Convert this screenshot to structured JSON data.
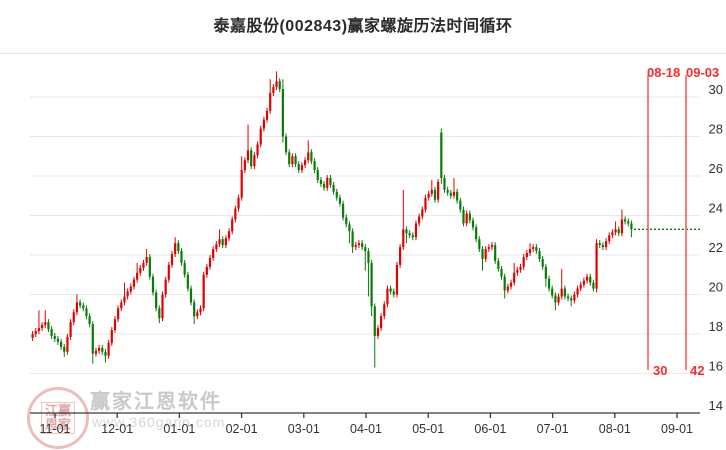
{
  "title": "泰嘉股份(002843)赢家螺旋历法时间循环",
  "watermark": {
    "logo_line1": "江赢",
    "logo_line2": "恩家",
    "name": "赢家江恩软件",
    "url": "www.360gann.com"
  },
  "annotations": {
    "event1_date": "08-18",
    "event1_value": "30",
    "event2_date": "09-03",
    "event2_value": "42"
  },
  "colors": {
    "up": "#e40000",
    "down": "#087c08",
    "grid": "#e9e9e9",
    "axis": "#3a3a3a",
    "tick_text": "#333333",
    "event_line": "#ff5f5f",
    "last_price_line": "#087c08"
  },
  "chart_data": {
    "type": "candlestick",
    "title": "泰嘉股份(002843)赢家螺旋历法时间循环",
    "ylabel": "",
    "xlabel": "",
    "ylim": [
      14,
      32
    ],
    "y_ticks": [
      30,
      28,
      26,
      24,
      22,
      20,
      18,
      16,
      14
    ],
    "x_tick_labels": [
      "11-01",
      "12-01",
      "01-01",
      "02-01",
      "03-01",
      "04-01",
      "05-01",
      "06-01",
      "07-01",
      "08-01",
      "09-01"
    ],
    "grid": true,
    "legend": "none",
    "last_close": 23.3,
    "event_lines": [
      {
        "label": "08-18",
        "value_label": "30",
        "x": 648
      },
      {
        "label": "09-03",
        "value_label": "42",
        "x": 686
      }
    ],
    "candles_format": [
      "open",
      "high",
      "low",
      "close"
    ],
    "candles": [
      [
        17.8,
        18.15,
        17.65,
        18.0
      ],
      [
        18.0,
        18.3,
        17.85,
        18.15
      ],
      [
        18.15,
        19.2,
        18.0,
        18.3
      ],
      [
        18.3,
        18.6,
        18.15,
        18.45
      ],
      [
        18.45,
        19.2,
        18.3,
        18.6
      ],
      [
        18.6,
        18.75,
        18.1,
        18.25
      ],
      [
        18.25,
        18.4,
        17.75,
        17.9
      ],
      [
        17.9,
        18.05,
        17.6,
        17.75
      ],
      [
        17.75,
        17.9,
        17.45,
        17.6
      ],
      [
        17.6,
        17.75,
        17.2,
        17.35
      ],
      [
        17.35,
        17.5,
        16.85,
        17.1
      ],
      [
        17.1,
        18.0,
        16.95,
        17.85
      ],
      [
        17.85,
        18.75,
        17.7,
        18.6
      ],
      [
        18.6,
        19.25,
        18.45,
        19.1
      ],
      [
        19.1,
        20.0,
        18.95,
        19.6
      ],
      [
        19.6,
        19.75,
        19.3,
        19.45
      ],
      [
        19.45,
        19.6,
        19.15,
        19.3
      ],
      [
        19.3,
        19.45,
        18.75,
        18.9
      ],
      [
        18.9,
        19.05,
        18.35,
        18.5
      ],
      [
        18.5,
        18.65,
        16.5,
        17.0
      ],
      [
        17.0,
        17.3,
        16.85,
        17.15
      ],
      [
        17.15,
        17.45,
        17.0,
        17.3
      ],
      [
        17.3,
        17.45,
        16.95,
        17.1
      ],
      [
        17.1,
        17.25,
        16.55,
        16.9
      ],
      [
        16.9,
        17.7,
        16.75,
        17.55
      ],
      [
        17.55,
        18.35,
        17.4,
        18.2
      ],
      [
        18.2,
        18.9,
        18.05,
        18.75
      ],
      [
        18.75,
        19.45,
        18.6,
        19.3
      ],
      [
        19.3,
        19.75,
        19.15,
        19.6
      ],
      [
        19.6,
        20.6,
        19.45,
        19.9
      ],
      [
        19.9,
        20.3,
        19.75,
        20.15
      ],
      [
        20.15,
        20.55,
        20.0,
        20.4
      ],
      [
        20.4,
        20.9,
        20.25,
        20.75
      ],
      [
        20.75,
        21.6,
        20.6,
        21.1
      ],
      [
        21.1,
        21.5,
        20.95,
        21.35
      ],
      [
        21.35,
        21.75,
        21.2,
        21.6
      ],
      [
        21.6,
        22.3,
        21.45,
        21.9
      ],
      [
        21.9,
        22.05,
        20.75,
        20.9
      ],
      [
        20.9,
        21.05,
        19.95,
        20.1
      ],
      [
        20.1,
        20.25,
        19.15,
        19.3
      ],
      [
        19.3,
        19.45,
        18.55,
        18.8
      ],
      [
        18.8,
        20.15,
        18.65,
        20.0
      ],
      [
        20.0,
        20.9,
        19.85,
        20.75
      ],
      [
        20.75,
        21.65,
        20.6,
        21.5
      ],
      [
        21.5,
        22.2,
        21.35,
        22.05
      ],
      [
        22.05,
        22.9,
        21.9,
        22.6
      ],
      [
        22.6,
        22.75,
        22.05,
        22.2
      ],
      [
        22.2,
        22.35,
        21.45,
        21.6
      ],
      [
        21.6,
        21.75,
        20.85,
        21.0
      ],
      [
        21.0,
        21.15,
        20.15,
        20.3
      ],
      [
        20.3,
        20.45,
        19.45,
        19.6
      ],
      [
        19.6,
        19.75,
        18.5,
        18.9
      ],
      [
        18.9,
        19.25,
        18.75,
        19.1
      ],
      [
        19.1,
        19.45,
        18.95,
        19.3
      ],
      [
        19.3,
        21.15,
        19.15,
        21.0
      ],
      [
        21.0,
        21.55,
        20.85,
        21.4
      ],
      [
        21.4,
        22.0,
        21.25,
        21.85
      ],
      [
        21.85,
        22.45,
        21.7,
        22.3
      ],
      [
        22.3,
        22.7,
        22.15,
        22.55
      ],
      [
        22.55,
        23.3,
        22.4,
        22.8
      ],
      [
        22.8,
        22.95,
        22.35,
        22.5
      ],
      [
        22.5,
        23.0,
        22.35,
        22.85
      ],
      [
        22.85,
        23.35,
        22.7,
        23.2
      ],
      [
        23.2,
        23.95,
        23.05,
        23.8
      ],
      [
        23.8,
        24.5,
        23.65,
        24.35
      ],
      [
        24.35,
        25.05,
        24.2,
        24.9
      ],
      [
        24.9,
        27.0,
        24.75,
        26.3
      ],
      [
        26.3,
        26.95,
        26.15,
        26.8
      ],
      [
        26.8,
        28.6,
        26.65,
        27.3
      ],
      [
        27.3,
        27.45,
        26.35,
        26.5
      ],
      [
        26.5,
        27.2,
        26.35,
        27.05
      ],
      [
        27.05,
        27.75,
        26.9,
        27.6
      ],
      [
        27.6,
        28.55,
        27.45,
        28.4
      ],
      [
        28.4,
        29.0,
        28.25,
        28.85
      ],
      [
        28.85,
        29.45,
        28.7,
        29.3
      ],
      [
        29.3,
        30.9,
        29.15,
        30.2
      ],
      [
        30.2,
        30.65,
        30.05,
        30.5
      ],
      [
        30.5,
        31.3,
        30.35,
        30.8
      ],
      [
        30.8,
        30.95,
        30.25,
        30.4
      ],
      [
        30.4,
        30.9,
        27.7,
        28.0
      ],
      [
        28.0,
        28.15,
        27.05,
        27.2
      ],
      [
        27.2,
        27.35,
        26.45,
        26.6
      ],
      [
        26.6,
        27.15,
        26.45,
        27.0
      ],
      [
        27.0,
        27.15,
        26.45,
        26.6
      ],
      [
        26.6,
        26.75,
        26.15,
        26.3
      ],
      [
        26.3,
        26.7,
        26.15,
        26.55
      ],
      [
        26.55,
        26.95,
        26.4,
        26.8
      ],
      [
        26.8,
        27.8,
        26.65,
        27.2
      ],
      [
        27.2,
        27.35,
        26.6,
        26.75
      ],
      [
        26.75,
        26.9,
        26.15,
        26.3
      ],
      [
        26.3,
        26.45,
        25.65,
        25.8
      ],
      [
        25.8,
        25.95,
        25.45,
        25.6
      ],
      [
        25.6,
        25.75,
        25.25,
        25.4
      ],
      [
        25.4,
        26.05,
        25.25,
        25.9
      ],
      [
        25.9,
        26.05,
        25.4,
        25.55
      ],
      [
        25.55,
        25.7,
        25.05,
        25.2
      ],
      [
        25.2,
        25.35,
        24.75,
        24.9
      ],
      [
        24.9,
        25.05,
        24.45,
        24.6
      ],
      [
        24.6,
        24.75,
        23.75,
        23.9
      ],
      [
        23.9,
        24.05,
        23.4,
        23.55
      ],
      [
        23.55,
        23.7,
        22.6,
        23.2
      ],
      [
        23.2,
        23.35,
        22.1,
        22.4
      ],
      [
        22.4,
        22.65,
        22.25,
        22.5
      ],
      [
        22.5,
        22.75,
        22.35,
        22.6
      ],
      [
        22.6,
        22.75,
        22.25,
        22.4
      ],
      [
        22.4,
        22.55,
        21.2,
        22.2
      ],
      [
        22.2,
        22.35,
        19.9,
        21.6
      ],
      [
        21.6,
        21.75,
        18.9,
        19.4
      ],
      [
        19.4,
        19.55,
        16.3,
        17.9
      ],
      [
        17.9,
        18.45,
        17.75,
        18.3
      ],
      [
        18.3,
        19.05,
        18.15,
        18.9
      ],
      [
        18.9,
        19.65,
        18.75,
        19.5
      ],
      [
        19.5,
        20.45,
        19.35,
        20.3
      ],
      [
        20.3,
        20.45,
        20.0,
        20.15
      ],
      [
        20.15,
        20.3,
        19.85,
        20.0
      ],
      [
        20.0,
        21.65,
        19.85,
        21.5
      ],
      [
        21.5,
        22.55,
        21.35,
        22.4
      ],
      [
        22.4,
        25.3,
        22.25,
        23.3
      ],
      [
        23.3,
        23.45,
        22.6,
        23.1
      ],
      [
        23.1,
        23.25,
        22.85,
        23.0
      ],
      [
        23.0,
        23.15,
        22.75,
        22.9
      ],
      [
        22.9,
        23.75,
        22.75,
        23.6
      ],
      [
        23.6,
        24.1,
        23.45,
        23.95
      ],
      [
        23.95,
        24.45,
        23.8,
        24.3
      ],
      [
        24.3,
        25.05,
        24.15,
        24.9
      ],
      [
        24.9,
        25.25,
        24.75,
        25.1
      ],
      [
        25.1,
        25.8,
        24.95,
        25.3
      ],
      [
        25.3,
        25.45,
        24.65,
        24.8
      ],
      [
        24.8,
        25.85,
        24.65,
        25.7
      ],
      [
        28.2,
        28.4,
        25.6,
        25.9
      ],
      [
        25.9,
        26.05,
        25.15,
        25.3
      ],
      [
        25.3,
        25.45,
        25.0,
        25.15
      ],
      [
        25.15,
        25.3,
        24.85,
        25.0
      ],
      [
        25.0,
        25.9,
        24.85,
        25.2
      ],
      [
        25.2,
        25.35,
        24.6,
        24.75
      ],
      [
        24.75,
        24.9,
        24.15,
        24.3
      ],
      [
        24.3,
        24.45,
        23.45,
        23.6
      ],
      [
        23.6,
        24.25,
        23.45,
        24.1
      ],
      [
        24.1,
        24.25,
        23.6,
        23.75
      ],
      [
        23.75,
        23.9,
        23.25,
        23.4
      ],
      [
        23.4,
        23.55,
        22.65,
        22.8
      ],
      [
        22.8,
        22.95,
        22.15,
        22.3
      ],
      [
        22.3,
        22.45,
        21.2,
        21.8
      ],
      [
        21.8,
        22.45,
        21.65,
        22.3
      ],
      [
        22.3,
        22.55,
        22.15,
        22.4
      ],
      [
        22.4,
        22.65,
        22.25,
        22.5
      ],
      [
        22.5,
        22.65,
        21.55,
        21.7
      ],
      [
        21.7,
        21.85,
        21.15,
        21.3
      ],
      [
        21.3,
        21.45,
        20.75,
        20.9
      ],
      [
        20.9,
        21.05,
        19.8,
        20.2
      ],
      [
        20.2,
        20.55,
        20.05,
        20.4
      ],
      [
        20.4,
        20.75,
        20.25,
        20.6
      ],
      [
        20.6,
        21.6,
        20.45,
        21.1
      ],
      [
        21.1,
        21.4,
        20.95,
        21.25
      ],
      [
        21.25,
        21.55,
        21.1,
        21.4
      ],
      [
        21.4,
        22.05,
        21.25,
        21.9
      ],
      [
        21.9,
        22.25,
        21.75,
        22.1
      ],
      [
        22.1,
        22.6,
        21.95,
        22.3
      ],
      [
        22.3,
        22.55,
        22.15,
        22.4
      ],
      [
        22.4,
        22.55,
        22.05,
        22.2
      ],
      [
        22.2,
        22.35,
        21.65,
        21.8
      ],
      [
        21.8,
        21.95,
        21.25,
        21.4
      ],
      [
        21.4,
        21.55,
        20.4,
        20.8
      ],
      [
        20.8,
        20.95,
        20.15,
        20.3
      ],
      [
        20.3,
        20.45,
        19.8,
        19.95
      ],
      [
        19.95,
        20.1,
        19.2,
        19.6
      ],
      [
        19.6,
        20.05,
        19.45,
        19.9
      ],
      [
        19.9,
        21.3,
        19.75,
        20.3
      ],
      [
        20.3,
        20.45,
        19.75,
        19.9
      ],
      [
        19.9,
        20.05,
        19.65,
        19.8
      ],
      [
        19.8,
        19.95,
        19.4,
        19.7
      ],
      [
        19.7,
        20.15,
        19.55,
        20.0
      ],
      [
        20.0,
        20.45,
        19.85,
        20.3
      ],
      [
        20.3,
        20.65,
        20.15,
        20.5
      ],
      [
        20.5,
        20.85,
        20.35,
        20.7
      ],
      [
        20.7,
        21.05,
        20.55,
        20.9
      ],
      [
        20.9,
        21.05,
        20.45,
        20.6
      ],
      [
        20.6,
        20.75,
        20.15,
        20.3
      ],
      [
        20.3,
        22.8,
        20.1,
        22.6
      ],
      [
        22.6,
        22.75,
        22.35,
        22.5
      ],
      [
        22.5,
        22.65,
        22.25,
        22.4
      ],
      [
        22.4,
        22.85,
        22.25,
        22.7
      ],
      [
        22.7,
        23.15,
        22.55,
        23.0
      ],
      [
        23.0,
        23.3,
        22.85,
        23.15
      ],
      [
        23.15,
        23.7,
        23.0,
        23.3
      ],
      [
        23.3,
        23.45,
        22.95,
        23.1
      ],
      [
        23.1,
        24.3,
        22.95,
        23.8
      ],
      [
        23.8,
        23.95,
        23.55,
        23.7
      ],
      [
        23.7,
        23.85,
        23.45,
        23.6
      ],
      [
        23.6,
        23.75,
        22.9,
        23.3
      ]
    ]
  }
}
